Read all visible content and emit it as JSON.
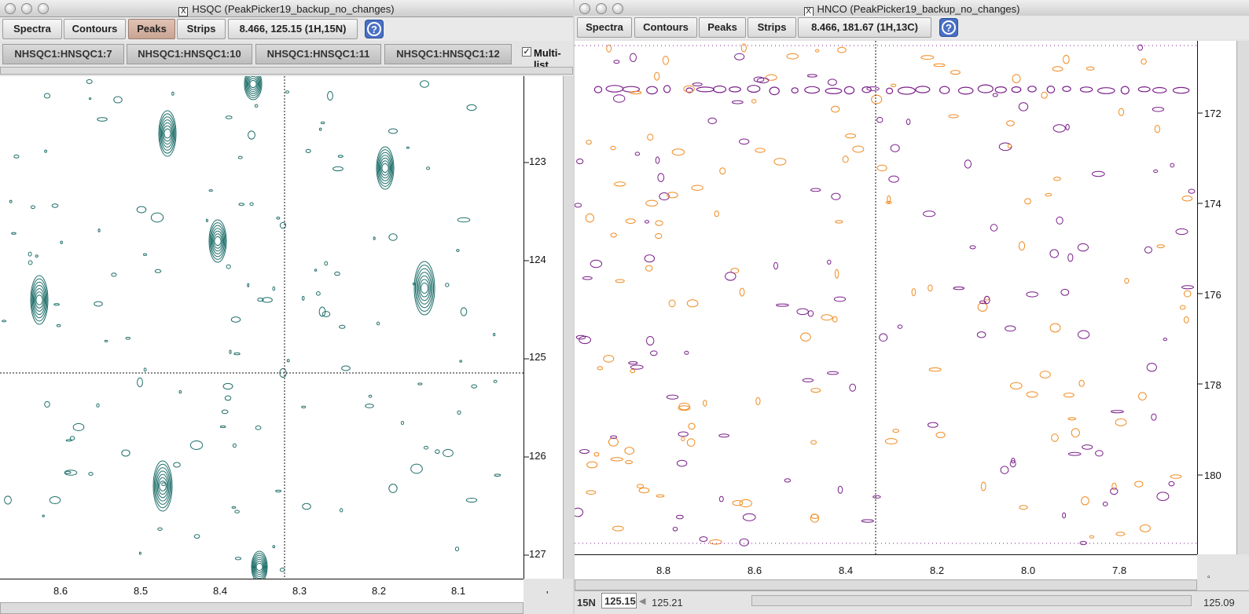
{
  "hsqc": {
    "title": "HSQC (PeakPicker19_backup_no_changes)",
    "toolbar": {
      "spectra": "Spectra",
      "contours": "Contours",
      "peaks": "Peaks",
      "strips": "Strips",
      "coords": "8.466, 125.15 (1H,15N)",
      "help": "?"
    },
    "tabs": [
      "NHSQC1:HNSQC1:7",
      "NHSQC1:HNSQC1:10",
      "NHSQC1:HNSQC1:11",
      "NHSQC1:HNSQC1:12"
    ],
    "multi_label": "Multi-list",
    "multi_checked": true,
    "y_ticks": [
      "123",
      "124",
      "125",
      "126",
      "127"
    ],
    "x_ticks": [
      "8.6",
      "8.5",
      "8.4",
      "8.3",
      "8.2",
      "8.1"
    ],
    "corner_dot": "'",
    "contour_color": "#1f6f6a"
  },
  "hnco": {
    "title": "HNCO (PeakPicker19_backup_no_changes)",
    "toolbar": {
      "spectra": "Spectra",
      "contours": "Contours",
      "peaks": "Peaks",
      "strips": "Strips",
      "coords": "8.466, 181.67 (1H,13C)",
      "help": "?"
    },
    "y_ticks": [
      "172",
      "174",
      "176",
      "178",
      "180"
    ],
    "x_ticks": [
      "8.8",
      "8.6",
      "8.4",
      "8.2",
      "8.0",
      "7.8"
    ],
    "corner_dot": "▫",
    "status": {
      "dim_label": "15N",
      "dim_value": "125.15",
      "left_value": "125.21",
      "right_value": "125.09"
    },
    "positive_color": "#f08a20",
    "negative_color": "#7a1f8a"
  }
}
